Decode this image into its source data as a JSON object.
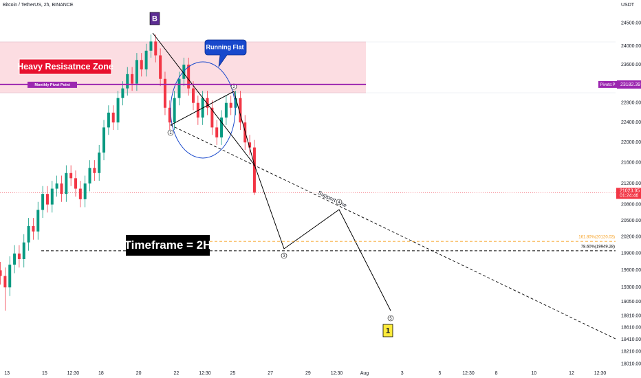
{
  "chart_data": {
    "type": "candlestick",
    "title": "Bitcoin / TetherUS, 2h, BINANCE",
    "currency": "USDT",
    "log_scale": true,
    "grid": false,
    "up_color": "#089981",
    "down_color": "#f23645",
    "xlim": [
      12.63,
      45.34
    ],
    "ylim": [
      17950,
      25020
    ],
    "xticks": [
      13,
      15,
      {
        "value": 16.52,
        "label": "12:30"
      },
      18,
      20,
      22,
      {
        "value": 23.52,
        "label": "12:30"
      },
      25,
      27,
      29,
      {
        "value": 30.52,
        "label": "12:30"
      },
      {
        "value": 32,
        "label": "Aug"
      },
      {
        "value": 34,
        "label": "3"
      },
      {
        "value": 36,
        "label": "5"
      },
      {
        "value": 37.52,
        "label": "12:30"
      },
      {
        "value": 39,
        "label": "8"
      },
      {
        "value": 41,
        "label": "10"
      },
      {
        "value": 43,
        "label": "12"
      },
      {
        "value": 44.52,
        "label": "12:30"
      }
    ],
    "yticks": [
      {
        "value": 24500,
        "label": "24500.00"
      },
      {
        "value": 24000,
        "label": "24000.00"
      },
      {
        "value": 23600,
        "label": "23600.00"
      },
      {
        "value": 22800,
        "label": "22800.00"
      },
      {
        "value": 22400,
        "label": "22400.00"
      },
      {
        "value": 22000,
        "label": "22000.00"
      },
      {
        "value": 21600,
        "label": "21600.00"
      },
      {
        "value": 21200,
        "label": "21200.00"
      },
      {
        "value": 20800,
        "label": "20800.00"
      },
      {
        "value": 20500,
        "label": "20500.00"
      },
      {
        "value": 20200,
        "label": "20200.00"
      },
      {
        "value": 19900,
        "label": "19900.00"
      },
      {
        "value": 19600,
        "label": "19600.00"
      },
      {
        "value": 19300,
        "label": "19300.00"
      },
      {
        "value": 19050,
        "label": "19050.00"
      },
      {
        "value": 18810,
        "label": "18810.00"
      },
      {
        "value": 18610,
        "label": "18610.00"
      },
      {
        "value": 18410,
        "label": "18410.00"
      },
      {
        "value": 18210,
        "label": "18210.00"
      },
      {
        "value": 18010,
        "label": "18010.00"
      }
    ],
    "x": [
      12.65,
      12.9,
      13.15,
      13.4,
      13.65,
      13.9,
      14.15,
      14.4,
      14.65,
      14.9,
      15.15,
      15.4,
      15.65,
      15.9,
      16.15,
      16.4,
      16.65,
      16.9,
      17.15,
      17.4,
      17.65,
      17.9,
      18.15,
      18.4,
      18.65,
      18.9,
      19.15,
      19.4,
      19.65,
      19.9,
      20.15,
      20.4,
      20.65,
      20.9,
      21.15,
      21.4,
      21.65,
      21.9,
      22.15,
      22.4,
      22.65,
      22.9,
      23.15,
      23.4,
      23.65,
      23.9,
      24.15,
      24.4,
      24.65,
      24.9,
      25.15,
      25.4,
      25.65,
      25.9,
      26.15
    ],
    "open": [
      19600,
      19500,
      19300,
      19700,
      19900,
      19800,
      20100,
      20400,
      20300,
      20700,
      21000,
      20800,
      21100,
      21200,
      21000,
      21400,
      21300,
      21100,
      20900,
      21200,
      21500,
      21400,
      21800,
      22300,
      22600,
      22400,
      22900,
      23100,
      23400,
      23200,
      23700,
      23500,
      23900,
      24100,
      23800,
      23300,
      22700,
      22400,
      22900,
      23300,
      23600,
      23100,
      22800,
      22500,
      22900,
      22700,
      22300,
      22100,
      22500,
      22800,
      22700,
      22900,
      22400,
      22000,
      21900
    ],
    "high": [
      19750,
      19650,
      19850,
      20050,
      20050,
      20250,
      20550,
      20550,
      20850,
      21150,
      21150,
      21250,
      21350,
      21350,
      21550,
      21550,
      21450,
      21250,
      21350,
      21650,
      21650,
      21950,
      22450,
      22750,
      22750,
      23050,
      23250,
      23550,
      23550,
      23850,
      23850,
      24050,
      24250,
      24250,
      23950,
      23450,
      22850,
      23050,
      23450,
      23750,
      23750,
      23250,
      22950,
      23050,
      23050,
      22850,
      22450,
      22650,
      22950,
      22950,
      23050,
      23050,
      22550,
      22150,
      22050
    ],
    "low": [
      19350,
      18900,
      19150,
      19550,
      19650,
      19650,
      19950,
      20150,
      20150,
      20550,
      20650,
      20650,
      20950,
      20850,
      20850,
      21150,
      20950,
      20750,
      20750,
      21050,
      21250,
      21250,
      21650,
      22150,
      22250,
      22250,
      22750,
      22950,
      23050,
      23050,
      23350,
      23350,
      23750,
      23650,
      23150,
      22550,
      22250,
      22250,
      22750,
      23150,
      22950,
      22650,
      22350,
      22350,
      22550,
      22150,
      21950,
      21950,
      22350,
      22550,
      22550,
      22250,
      21850,
      21750,
      20980
    ],
    "close": [
      19500,
      19300,
      19700,
      19900,
      19800,
      20100,
      20400,
      20300,
      20700,
      21000,
      20800,
      21100,
      21200,
      21000,
      21400,
      21300,
      21100,
      20900,
      21200,
      21500,
      21400,
      21800,
      22300,
      22600,
      22400,
      22900,
      23100,
      23400,
      23200,
      23700,
      23500,
      23900,
      24100,
      23800,
      23300,
      22700,
      22400,
      22900,
      23300,
      23600,
      23100,
      22800,
      22500,
      22900,
      22700,
      22300,
      22100,
      22500,
      22800,
      22700,
      22900,
      22400,
      22000,
      21900,
      21023.95
    ],
    "last_price": 21023.95,
    "countdown": "01:24:46",
    "pivot": {
      "name": "Monthly Pivot Point",
      "tag": "Pivots:P",
      "value": 23182.39,
      "label": "23182.39",
      "color": "#9c27b0"
    },
    "fib_levels": [
      {
        "label": "161.80%(20120.03)",
        "value": 20120.03,
        "color": "#f7a021"
      },
      {
        "label": "78.60%(19949.28)",
        "value": 19949.28,
        "color": "#000000"
      }
    ],
    "annotations": {
      "zone_label": "Heavy Resisatnce Zone",
      "bubble": "Running Flat",
      "support": "Support Line",
      "timeframe": "Timeframe = 2H",
      "corrective_label": "B",
      "degree_label": "1",
      "wave_labels": [
        "1",
        "2",
        "3",
        "4",
        "5"
      ]
    }
  }
}
